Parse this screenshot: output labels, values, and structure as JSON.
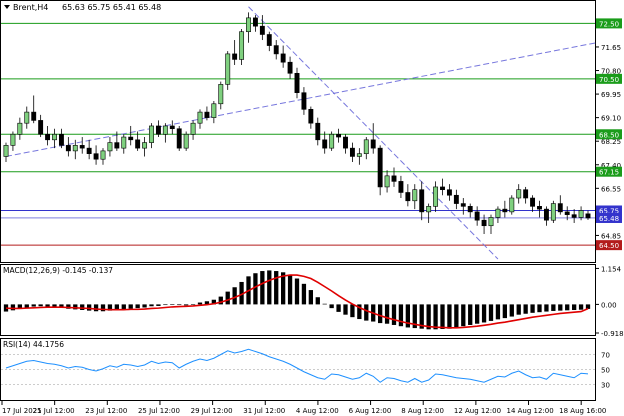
{
  "header": {
    "symbol": "Brent,H4",
    "ohlc": "65.63 65.75 65.41 65.48"
  },
  "price_levels": [
    {
      "label": "72.50",
      "value": 72.5,
      "kind": "resistance"
    },
    {
      "label": "70.50",
      "value": 70.5,
      "kind": "resistance"
    },
    {
      "label": "68.50",
      "value": 68.5,
      "kind": "resistance"
    },
    {
      "label": "67.15",
      "value": 67.15,
      "kind": "resistance"
    },
    {
      "label": "65.75",
      "value": 65.75,
      "kind": "current"
    },
    {
      "label": "65.48",
      "value": 65.48,
      "kind": "bid"
    },
    {
      "label": "64.50",
      "value": 64.5,
      "kind": "support"
    }
  ],
  "price_ticks": [
    "71.65",
    "70.80",
    "69.95",
    "69.10",
    "68.25",
    "67.40",
    "66.55",
    "65.70",
    "64.85"
  ],
  "x_ticks": [
    "17 Jul 2025",
    "21 Jul 12:00",
    "23 Jul 12:00",
    "25 Jul 12:00",
    "29 Jul 12:00",
    "31 Jul 12:00",
    "4 Aug 12:00",
    "6 Aug 12:00",
    "8 Aug 12:00",
    "12 Aug 12:00",
    "14 Aug 12:00",
    "18 Aug 16:00"
  ],
  "macd": {
    "title": "MACD(12,26,9) -0.145 -0.137",
    "ticks": [
      "1.154",
      "0.00",
      "-0.918"
    ]
  },
  "rsi": {
    "title": "RSI(14) 44.1756",
    "ticks": [
      "70",
      "50",
      "30"
    ]
  },
  "colors": {
    "level_green": "#1a9c1a",
    "level_blue": "#3333cc",
    "level_red": "#b31b1b",
    "trend_dash": "#7777dd",
    "macd_hist": "#000000",
    "macd_signal": "#e00000",
    "rsi_line": "#1e90ff",
    "bull_fill": "#7fd07f"
  },
  "chart_data": [
    {
      "type": "candlestick",
      "title": "Brent,H4",
      "ylim": [
        64.0,
        73.2
      ],
      "y_axis_ticks": [
        71.65,
        70.8,
        69.95,
        69.1,
        68.25,
        67.4,
        66.55,
        65.7,
        64.85
      ],
      "x_ticks": [
        "17 Jul 2025",
        "21 Jul 12:00",
        "23 Jul 12:00",
        "25 Jul 12:00",
        "29 Jul 12:00",
        "31 Jul 12:00",
        "4 Aug 12:00",
        "6 Aug 12:00",
        "8 Aug 12:00",
        "12 Aug 12:00",
        "14 Aug 12:00",
        "18 Aug 16:00"
      ],
      "candles": [
        [
          67.7,
          68.2,
          67.5,
          68.1
        ],
        [
          68.1,
          68.6,
          67.9,
          68.5
        ],
        [
          68.5,
          69.1,
          68.3,
          68.9
        ],
        [
          68.9,
          69.5,
          68.7,
          69.3
        ],
        [
          69.3,
          69.9,
          68.9,
          69.0
        ],
        [
          69.0,
          69.2,
          68.4,
          68.5
        ],
        [
          68.5,
          68.8,
          68.1,
          68.3
        ],
        [
          68.3,
          68.7,
          68.0,
          68.5
        ],
        [
          68.5,
          68.7,
          68.0,
          68.1
        ],
        [
          68.1,
          68.4,
          67.7,
          67.9
        ],
        [
          67.9,
          68.3,
          67.6,
          68.1
        ],
        [
          68.1,
          68.4,
          67.8,
          68.0
        ],
        [
          68.0,
          68.3,
          67.6,
          67.8
        ],
        [
          67.8,
          68.1,
          67.4,
          67.6
        ],
        [
          67.6,
          68.0,
          67.4,
          67.9
        ],
        [
          67.9,
          68.4,
          67.7,
          68.2
        ],
        [
          68.2,
          68.6,
          67.9,
          68.0
        ],
        [
          68.0,
          68.5,
          67.8,
          68.4
        ],
        [
          68.4,
          68.8,
          68.1,
          68.3
        ],
        [
          68.3,
          68.6,
          67.9,
          68.0
        ],
        [
          68.0,
          68.4,
          67.7,
          68.2
        ],
        [
          68.2,
          68.9,
          68.0,
          68.8
        ],
        [
          68.8,
          69.0,
          68.4,
          68.5
        ],
        [
          68.5,
          68.9,
          68.2,
          68.8
        ],
        [
          68.8,
          69.0,
          68.5,
          68.7
        ],
        [
          68.7,
          68.8,
          67.9,
          68.0
        ],
        [
          68.0,
          68.6,
          67.9,
          68.5
        ],
        [
          68.5,
          69.0,
          68.3,
          68.9
        ],
        [
          68.9,
          69.4,
          68.7,
          69.3
        ],
        [
          69.3,
          69.5,
          69.0,
          69.1
        ],
        [
          69.1,
          69.7,
          68.9,
          69.6
        ],
        [
          69.6,
          70.4,
          69.4,
          70.3
        ],
        [
          70.3,
          71.5,
          70.1,
          71.4
        ],
        [
          71.4,
          71.9,
          71.0,
          71.2
        ],
        [
          71.2,
          72.3,
          71.0,
          72.2
        ],
        [
          72.2,
          72.9,
          71.8,
          72.7
        ],
        [
          72.7,
          72.8,
          72.2,
          72.4
        ],
        [
          72.4,
          72.8,
          71.9,
          72.1
        ],
        [
          72.1,
          72.2,
          71.5,
          71.7
        ],
        [
          71.7,
          71.9,
          71.2,
          71.4
        ],
        [
          71.4,
          71.7,
          70.9,
          71.1
        ],
        [
          71.1,
          71.3,
          70.5,
          70.7
        ],
        [
          70.7,
          70.9,
          69.8,
          70.0
        ],
        [
          70.0,
          70.2,
          69.2,
          69.4
        ],
        [
          69.4,
          69.5,
          68.7,
          68.9
        ],
        [
          68.9,
          69.1,
          68.1,
          68.3
        ],
        [
          68.3,
          68.6,
          67.8,
          68.0
        ],
        [
          68.0,
          68.6,
          67.9,
          68.5
        ],
        [
          68.5,
          68.7,
          68.2,
          68.4
        ],
        [
          68.4,
          68.5,
          67.8,
          68.0
        ],
        [
          68.0,
          68.2,
          67.5,
          67.7
        ],
        [
          67.7,
          68.0,
          67.4,
          67.8
        ],
        [
          67.8,
          68.4,
          67.6,
          68.3
        ],
        [
          68.3,
          68.9,
          67.8,
          68.0
        ],
        [
          68.0,
          68.1,
          66.3,
          66.6
        ],
        [
          66.6,
          67.2,
          66.4,
          67.0
        ],
        [
          67.0,
          67.3,
          66.6,
          66.8
        ],
        [
          66.8,
          67.0,
          66.2,
          66.4
        ],
        [
          66.4,
          66.7,
          65.9,
          66.1
        ],
        [
          66.1,
          66.7,
          65.8,
          66.5
        ],
        [
          66.5,
          66.8,
          65.4,
          65.7
        ],
        [
          65.7,
          66.0,
          65.3,
          65.9
        ],
        [
          65.9,
          66.8,
          65.7,
          66.6
        ],
        [
          66.6,
          66.9,
          66.3,
          66.5
        ],
        [
          66.5,
          66.7,
          66.1,
          66.3
        ],
        [
          66.3,
          66.5,
          65.8,
          66.0
        ],
        [
          66.0,
          66.2,
          65.6,
          65.9
        ],
        [
          65.9,
          66.0,
          65.5,
          65.7
        ],
        [
          65.7,
          65.9,
          65.2,
          65.4
        ],
        [
          65.4,
          65.6,
          64.9,
          65.2
        ],
        [
          65.2,
          65.6,
          64.9,
          65.5
        ],
        [
          65.5,
          65.9,
          65.3,
          65.8
        ],
        [
          65.8,
          66.1,
          65.5,
          65.7
        ],
        [
          65.7,
          66.3,
          65.6,
          66.2
        ],
        [
          66.2,
          66.7,
          66.0,
          66.5
        ],
        [
          66.5,
          66.6,
          66.0,
          66.2
        ],
        [
          66.2,
          66.3,
          65.7,
          65.9
        ],
        [
          65.9,
          66.1,
          65.5,
          65.8
        ],
        [
          65.8,
          65.9,
          65.2,
          65.4
        ],
        [
          65.4,
          66.1,
          65.3,
          66.0
        ],
        [
          66.0,
          66.3,
          65.6,
          65.7
        ],
        [
          65.7,
          65.9,
          65.4,
          65.6
        ],
        [
          65.6,
          65.8,
          65.3,
          65.5
        ],
        [
          65.5,
          65.9,
          65.4,
          65.75
        ],
        [
          65.63,
          65.75,
          65.41,
          65.48
        ]
      ],
      "horizontal_levels": [
        72.5,
        70.5,
        68.5,
        67.15,
        65.75,
        65.48,
        64.5
      ]
    },
    {
      "type": "bar",
      "title": "MACD(12,26,9) -0.145 -0.137",
      "y_axis_ticks": [
        1.154,
        0.0,
        -0.918
      ],
      "ylim": [
        -0.95,
        1.2
      ],
      "values": [
        -0.23,
        -0.19,
        -0.14,
        -0.1,
        -0.07,
        -0.06,
        -0.07,
        -0.09,
        -0.11,
        -0.14,
        -0.16,
        -0.18,
        -0.2,
        -0.22,
        -0.22,
        -0.2,
        -0.19,
        -0.17,
        -0.14,
        -0.12,
        -0.1,
        -0.06,
        -0.05,
        -0.02,
        0.0,
        -0.02,
        -0.03,
        0.0,
        0.06,
        0.1,
        0.15,
        0.25,
        0.41,
        0.55,
        0.72,
        0.9,
        1.0,
        1.07,
        1.09,
        1.07,
        1.03,
        0.96,
        0.83,
        0.66,
        0.46,
        0.23,
        0.02,
        -0.12,
        -0.24,
        -0.33,
        -0.41,
        -0.47,
        -0.52,
        -0.55,
        -0.6,
        -0.62,
        -0.66,
        -0.7,
        -0.74,
        -0.76,
        -0.78,
        -0.8,
        -0.8,
        -0.79,
        -0.78,
        -0.74,
        -0.7,
        -0.66,
        -0.62,
        -0.58,
        -0.53,
        -0.48,
        -0.44,
        -0.39,
        -0.33,
        -0.3,
        -0.27,
        -0.25,
        -0.23,
        -0.21,
        -0.2,
        -0.19,
        -0.18,
        -0.17,
        -0.145
      ],
      "signal": [
        -0.12,
        -0.13,
        -0.13,
        -0.12,
        -0.11,
        -0.1,
        -0.09,
        -0.09,
        -0.09,
        -0.1,
        -0.11,
        -0.12,
        -0.13,
        -0.15,
        -0.16,
        -0.17,
        -0.17,
        -0.17,
        -0.16,
        -0.16,
        -0.15,
        -0.13,
        -0.12,
        -0.1,
        -0.08,
        -0.07,
        -0.06,
        -0.05,
        -0.03,
        -0.01,
        0.02,
        0.07,
        0.14,
        0.22,
        0.32,
        0.44,
        0.56,
        0.67,
        0.77,
        0.85,
        0.91,
        0.94,
        0.94,
        0.9,
        0.83,
        0.71,
        0.57,
        0.43,
        0.28,
        0.14,
        0.01,
        -0.1,
        -0.2,
        -0.28,
        -0.36,
        -0.43,
        -0.49,
        -0.55,
        -0.6,
        -0.64,
        -0.68,
        -0.71,
        -0.73,
        -0.74,
        -0.75,
        -0.75,
        -0.74,
        -0.72,
        -0.7,
        -0.67,
        -0.64,
        -0.6,
        -0.57,
        -0.53,
        -0.49,
        -0.45,
        -0.41,
        -0.38,
        -0.35,
        -0.32,
        -0.29,
        -0.27,
        -0.25,
        -0.23,
        -0.137
      ]
    },
    {
      "type": "line",
      "title": "RSI(14) 44.1756",
      "y_axis_ticks": [
        70,
        50,
        30
      ],
      "ylim": [
        12,
        88
      ],
      "values": [
        52,
        55,
        58,
        61,
        62,
        60,
        58,
        57,
        55,
        52,
        54,
        53,
        50,
        48,
        51,
        55,
        53,
        57,
        56,
        54,
        56,
        61,
        58,
        60,
        59,
        52,
        57,
        61,
        64,
        62,
        65,
        70,
        75,
        72,
        74,
        77,
        74,
        71,
        67,
        64,
        61,
        57,
        52,
        47,
        43,
        39,
        37,
        44,
        43,
        40,
        37,
        39,
        45,
        41,
        33,
        39,
        38,
        35,
        33,
        38,
        33,
        36,
        44,
        43,
        41,
        39,
        38,
        37,
        35,
        33,
        37,
        41,
        40,
        45,
        48,
        43,
        39,
        40,
        37,
        45,
        43,
        41,
        39,
        45,
        44.18
      ]
    }
  ]
}
